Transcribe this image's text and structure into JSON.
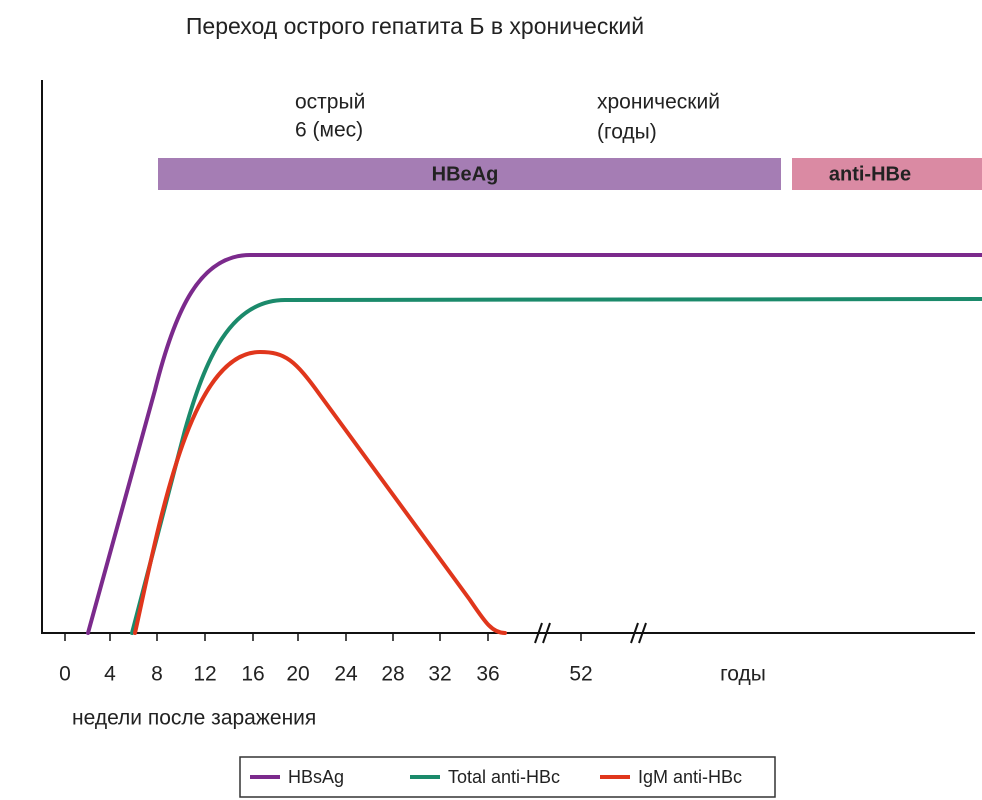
{
  "title": "Переход острого гепатита Б в хронический",
  "phases": [
    {
      "label": "острый",
      "sublabel": "6 (мес)"
    },
    {
      "label": "хронический",
      "sublabel": "(годы)"
    }
  ],
  "bands": [
    {
      "label": "HBeAg",
      "color": "#a57db4"
    },
    {
      "label": "anti-HBe",
      "color": "#da8aa3"
    }
  ],
  "x_axis": {
    "ticks": [
      "0",
      "4",
      "8",
      "12",
      "16",
      "20",
      "24",
      "28",
      "32",
      "36",
      "52"
    ],
    "years_label": "годы",
    "label": "недели после заражения"
  },
  "legend": [
    {
      "name": "HBsAg",
      "color": "#7b2a8c"
    },
    {
      "name": "Total anti-HBc",
      "color": "#1b8a6b"
    },
    {
      "name": "IgM anti-HBc",
      "color": "#e0361c"
    }
  ]
}
